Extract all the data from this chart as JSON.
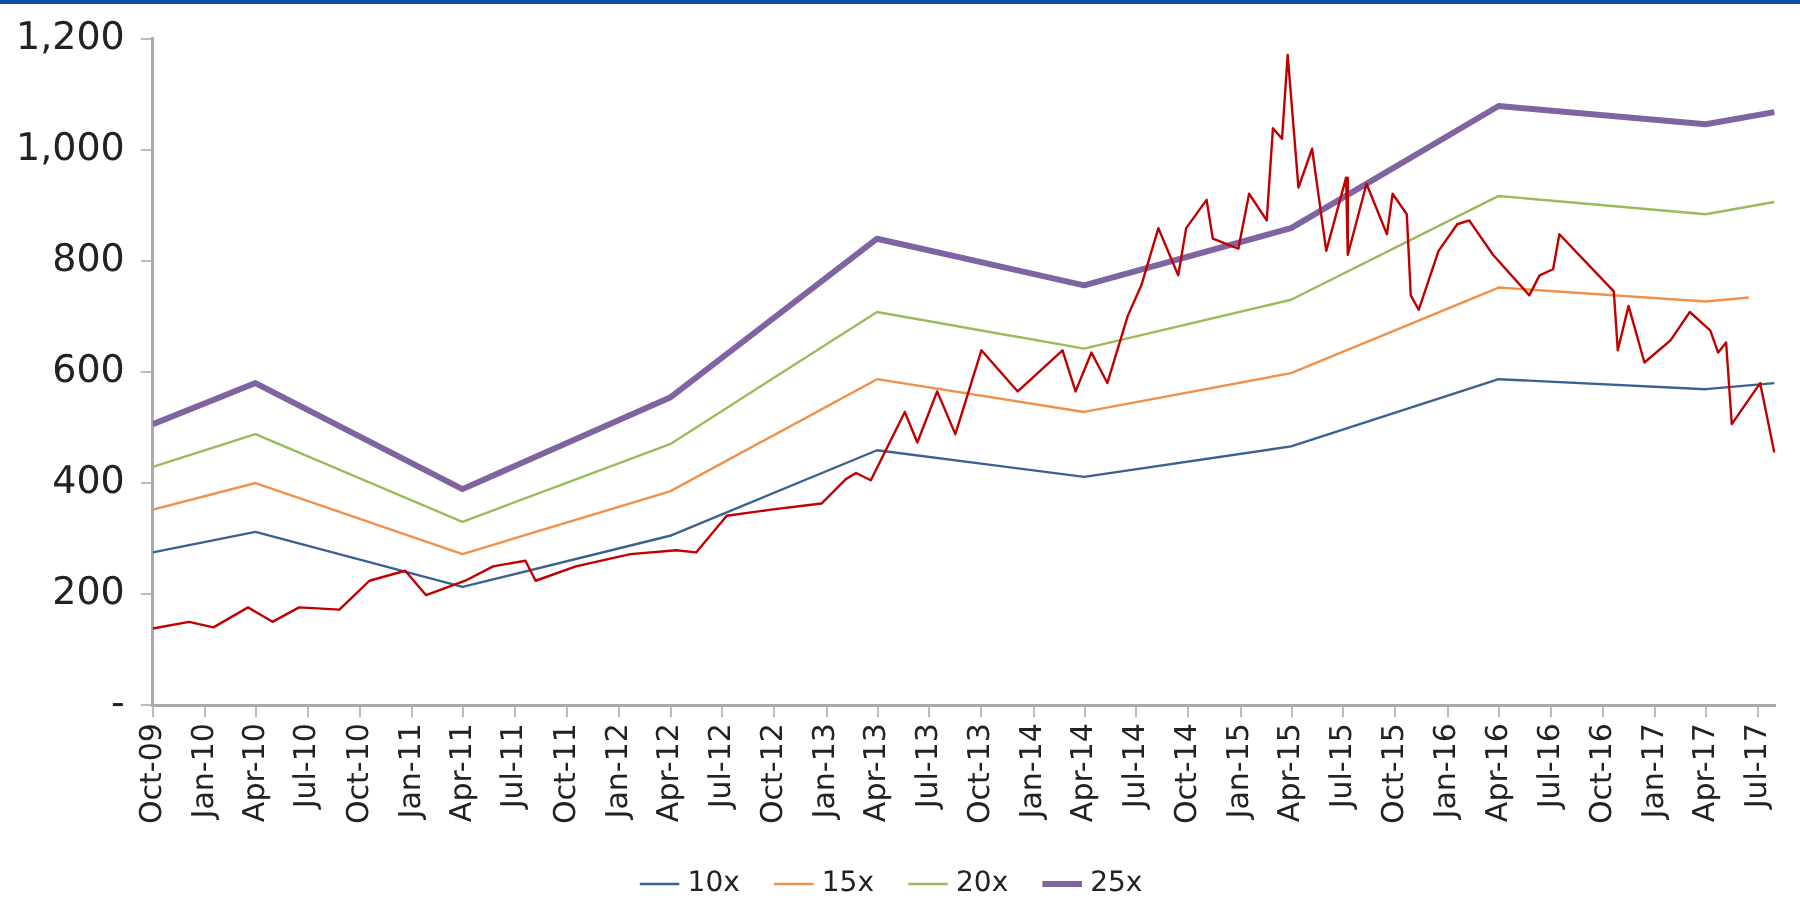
{
  "chart_data": {
    "type": "line",
    "marker": "none",
    "line_style": "solid",
    "grid": false,
    "legend": "bottom",
    "xlim": [
      "2009-10",
      "2017-08"
    ],
    "xticks": [
      {
        "value": "2009-10",
        "label": "Oct-09"
      },
      {
        "value": "2010-01",
        "label": "Jan-10"
      },
      {
        "value": "2010-04",
        "label": "Apr-10"
      },
      {
        "value": "2010-07",
        "label": "Jul-10"
      },
      {
        "value": "2010-10",
        "label": "Oct-10"
      },
      {
        "value": "2011-01",
        "label": "Jan-11"
      },
      {
        "value": "2011-04",
        "label": "Apr-11"
      },
      {
        "value": "2011-07",
        "label": "Jul-11"
      },
      {
        "value": "2011-10",
        "label": "Oct-11"
      },
      {
        "value": "2012-01",
        "label": "Jan-12"
      },
      {
        "value": "2012-04",
        "label": "Apr-12"
      },
      {
        "value": "2012-07",
        "label": "Jul-12"
      },
      {
        "value": "2012-10",
        "label": "Oct-12"
      },
      {
        "value": "2013-01",
        "label": "Jan-13"
      },
      {
        "value": "2013-04",
        "label": "Apr-13"
      },
      {
        "value": "2013-07",
        "label": "Jul-13"
      },
      {
        "value": "2013-10",
        "label": "Oct-13"
      },
      {
        "value": "2014-01",
        "label": "Jan-14"
      },
      {
        "value": "2014-04",
        "label": "Apr-14"
      },
      {
        "value": "2014-07",
        "label": "Jul-14"
      },
      {
        "value": "2014-10",
        "label": "Oct-14"
      },
      {
        "value": "2015-01",
        "label": "Jan-15"
      },
      {
        "value": "2015-04",
        "label": "Apr-15"
      },
      {
        "value": "2015-07",
        "label": "Jul-15"
      },
      {
        "value": "2015-10",
        "label": "Oct-15"
      },
      {
        "value": "2016-01",
        "label": "Jan-16"
      },
      {
        "value": "2016-04",
        "label": "Apr-16"
      },
      {
        "value": "2016-07",
        "label": "Jul-16"
      },
      {
        "value": "2016-10",
        "label": "Oct-16"
      },
      {
        "value": "2017-01",
        "label": "Jan-17"
      },
      {
        "value": "2017-04",
        "label": "Apr-17"
      },
      {
        "value": "2017-07",
        "label": "Jul-17"
      }
    ],
    "ylim": [
      0,
      1200
    ],
    "yticks": [
      {
        "value": 0,
        "label": "-"
      },
      200,
      400,
      600,
      800,
      {
        "value": 1000,
        "label": "1,000"
      },
      {
        "value": 1200,
        "label": "1,200"
      }
    ],
    "series": [
      {
        "name": "10x",
        "color": "#3b6190",
        "x": [
          "2009-10-01",
          "2010-03-31",
          "2011-03-31",
          "2012-03-31",
          "2013-03-31",
          "2014-03-31",
          "2015-03-31",
          "2016-03-31",
          "2017-03-31",
          "2017-07-30"
        ],
        "values": [
          275,
          312,
          213,
          305,
          459,
          411,
          466,
          587,
          569,
          580
        ]
      },
      {
        "name": "15x",
        "color": "#f0914a",
        "x": [
          "2009-10-01",
          "2010-03-31",
          "2011-03-31",
          "2012-03-31",
          "2013-03-31",
          "2014-03-31",
          "2015-03-31",
          "2016-03-31",
          "2017-03-31",
          "2017-06-15"
        ],
        "values": [
          352,
          400,
          272,
          385,
          587,
          528,
          598,
          752,
          727,
          734
        ]
      },
      {
        "name": "20x",
        "color": "#9bbb59",
        "x": [
          "2009-10-01",
          "2010-03-31",
          "2011-03-31",
          "2012-03-31",
          "2013-03-31",
          "2014-03-31",
          "2015-03-31",
          "2016-03-31",
          "2017-03-31",
          "2017-07-30"
        ],
        "values": [
          429,
          488,
          330,
          470,
          708,
          642,
          730,
          917,
          884,
          906
        ]
      },
      {
        "name": "25x",
        "color": "#8064a2",
        "x": [
          "2009-10-01",
          "2010-03-31",
          "2011-03-31",
          "2012-03-31",
          "2013-03-31",
          "2014-03-31",
          "2015-03-31",
          "2016-03-31",
          "2017-03-31",
          "2017-07-30"
        ],
        "values": [
          506,
          580,
          389,
          554,
          840,
          756,
          859,
          1079,
          1046,
          1068
        ]
      },
      {
        "color": "#c00000",
        "x": [
          "2009-10-01",
          "2009-12-04",
          "2010-01-16",
          "2010-03-18",
          "2010-04-30",
          "2010-06-16",
          "2010-08-26",
          "2010-10-18",
          "2010-12-20",
          "2011-01-26",
          "2011-04-05",
          "2011-05-24",
          "2011-07-20",
          "2011-08-07",
          "2011-10-17",
          "2012-01-21",
          "2012-04-11",
          "2012-05-16",
          "2012-07-09",
          "2012-09-25",
          "2012-12-23",
          "2013-02-04",
          "2013-02-22",
          "2013-03-20",
          "2013-05-19",
          "2013-06-10",
          "2013-07-15",
          "2013-08-16",
          "2013-10-01",
          "2013-12-04",
          "2014-02-21",
          "2014-03-16",
          "2014-04-13",
          "2014-05-11",
          "2014-06-16",
          "2014-07-10",
          "2014-08-09",
          "2014-09-13",
          "2014-09-27",
          "2014-11-02",
          "2014-11-13",
          "2014-12-28",
          "2015-01-16",
          "2015-02-16",
          "2015-02-27",
          "2015-03-15",
          "2015-03-25",
          "2015-04-13",
          "2015-05-07",
          "2015-06-01",
          "2015-07-06",
          "2015-07-09",
          "2015-08-11",
          "2015-09-16",
          "2015-09-26",
          "2015-10-21",
          "2015-10-28",
          "2015-11-11",
          "2015-12-16",
          "2016-01-18",
          "2016-02-08",
          "2016-03-21",
          "2016-05-24",
          "2016-06-11",
          "2016-07-05",
          "2016-07-16",
          "2016-10-20",
          "2016-10-27",
          "2016-11-15",
          "2016-12-13",
          "2017-01-28",
          "2017-03-03",
          "2017-04-08",
          "2017-04-22",
          "2017-05-06",
          "2017-05-16",
          "2017-07-05",
          "2017-07-30"
        ],
        "values": [
          138,
          150,
          140,
          176,
          150,
          176,
          172,
          224,
          242,
          198,
          224,
          250,
          260,
          224,
          250,
          272,
          279,
          275,
          341,
          352,
          363,
          407,
          418,
          405,
          528,
          473,
          565,
          488,
          639,
          565,
          639,
          565,
          635,
          580,
          701,
          756,
          859,
          774,
          859,
          910,
          840,
          822,
          921,
          873,
          1039,
          1020,
          1171,
          932,
          1002,
          818,
          950,
          811,
          939,
          848,
          921,
          884,
          738,
          712,
          818,
          866,
          873,
          811,
          738,
          774,
          785,
          848,
          745,
          639,
          719,
          617,
          657,
          708,
          675,
          635,
          653,
          506,
          580,
          455
        ]
      }
    ]
  }
}
